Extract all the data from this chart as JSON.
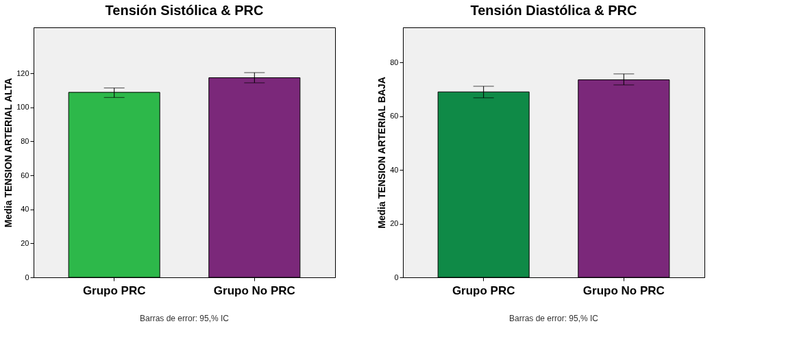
{
  "chart_data": [
    {
      "type": "bar",
      "title": "Tensión Sistólica & PRC",
      "ylabel": "Media TENSION ARTERIAL ALTA",
      "categories": [
        "Grupo PRC",
        "Grupo No PRC"
      ],
      "values": [
        108.8,
        117.4
      ],
      "colors": [
        "#2db84a",
        "#7b287a"
      ],
      "errors": [
        [
          105.8,
          111.4
        ],
        [
          114.4,
          120.4
        ]
      ],
      "ylim": [
        0,
        147
      ],
      "yticks": [
        0,
        20,
        40,
        60,
        80,
        100,
        120
      ],
      "annotations": [
        "Barras de error: 95,% IC"
      ]
    },
    {
      "type": "bar",
      "title": "Tensión Diastólica & PRC",
      "ylabel": "Media TENSION ARTERIAL BAJA",
      "categories": [
        "Grupo PRC",
        "Grupo No PRC"
      ],
      "values": [
        69.0,
        73.5
      ],
      "colors": [
        "#0f8a47",
        "#7b287a"
      ],
      "errors": [
        [
          66.8,
          71.1
        ],
        [
          71.6,
          75.7
        ]
      ],
      "ylim": [
        0,
        93
      ],
      "yticks": [
        0,
        20,
        40,
        60,
        80
      ],
      "annotations": [
        "Barras de error: 95,% IC"
      ]
    }
  ]
}
